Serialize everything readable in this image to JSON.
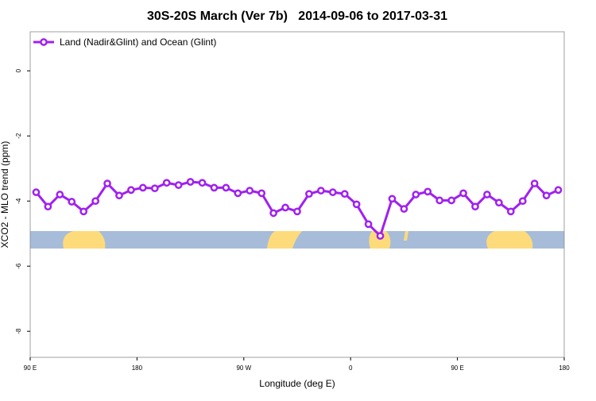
{
  "chart_data": {
    "type": "line",
    "title": "30S-20S March (Ver 7b)   2014-09-06 to 2017-03-31",
    "x_label": "Longitude (deg E)",
    "y_label": "XCO2 - MLO trend (ppm)",
    "x": [
      95,
      105,
      115,
      125,
      135,
      145,
      155,
      165,
      175,
      185,
      195,
      205,
      215,
      225,
      235,
      245,
      255,
      265,
      275,
      285,
      295,
      305,
      315,
      325,
      335,
      345,
      355,
      365,
      375,
      385,
      395,
      405,
      415,
      425,
      435,
      445,
      455,
      465,
      475,
      485,
      495,
      505,
      515,
      525,
      535
    ],
    "series": [
      {
        "name": "Land (Nadir&Glint) and Ocean (Glint)",
        "color": "#a020f0",
        "values": [
          -3.73,
          -4.17,
          -3.8,
          -4.02,
          -4.32,
          -4.0,
          -3.46,
          -3.83,
          -3.66,
          -3.59,
          -3.61,
          -3.44,
          -3.51,
          -3.41,
          -3.44,
          -3.59,
          -3.59,
          -3.76,
          -3.68,
          -3.76,
          -4.37,
          -4.2,
          -4.32,
          -3.78,
          -3.68,
          -3.73,
          -3.78,
          -4.1,
          -4.71,
          -5.07,
          -3.93,
          -4.24,
          -3.8,
          -3.71,
          -3.98,
          -3.98,
          -3.76,
          -4.17,
          -3.8,
          -4.05,
          -4.32,
          -4.0,
          -3.46,
          -3.83,
          -3.66
        ]
      }
    ],
    "xlim": [
      90,
      540
    ],
    "xticks": [
      {
        "value": 90,
        "label": "90 E"
      },
      180,
      {
        "value": 270,
        "label": "90 W"
      },
      {
        "value": 360,
        "label": "0"
      },
      {
        "value": 450,
        "label": "90 E"
      },
      {
        "value": 540,
        "label": "180"
      }
    ],
    "ylim": [
      -8.8,
      1.2
    ],
    "yticks": [
      0,
      -2,
      -4,
      -6,
      -8
    ],
    "legend": "top-left"
  }
}
